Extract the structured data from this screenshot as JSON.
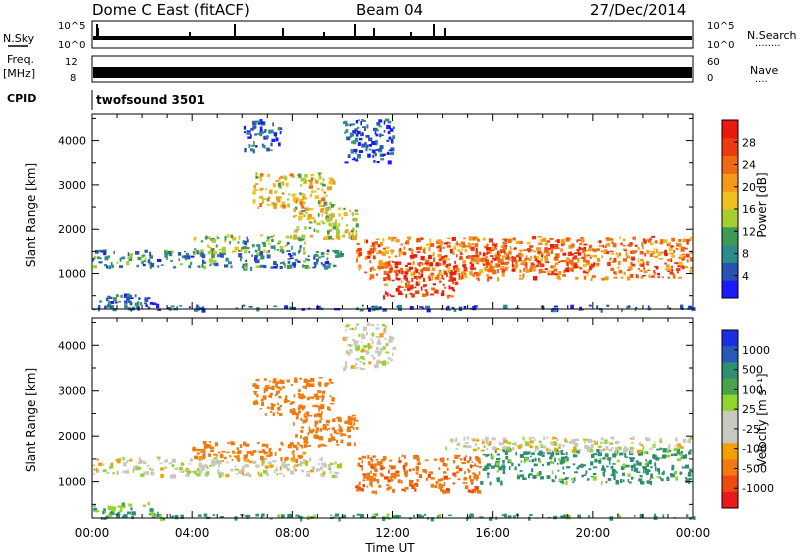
{
  "header": {
    "station": "Dome C East (fitACF)",
    "beam": "Beam 04",
    "date": "27/Dec/2014"
  },
  "strip": {
    "nsky_label": "N.Sky",
    "nsearch_label": "N.Search",
    "nsearch_dots": "........",
    "freq_label": "Freq.",
    "freq_unit": "[MHz]",
    "nave_label": "Nave",
    "nave_dots": "....",
    "cpid_label": "CPID",
    "cpid_value": "twofsound 3501",
    "noise_ticks_left": [
      "10^5",
      "10^0"
    ],
    "noise_ticks_right": [
      "10^5",
      "10^0"
    ],
    "freq_ticks_left": [
      "12",
      "8"
    ],
    "freq_ticks_right": [
      "60",
      "0"
    ]
  },
  "colors": {
    "power": [
      "#1a1aff",
      "#2a52b0",
      "#2f8a8a",
      "#3f9a55",
      "#a5cf30",
      "#f0c020",
      "#f59a18",
      "#f06a12",
      "#ee3a10",
      "#ea1a0e"
    ],
    "velocity": [
      "#1a2fe0",
      "#2a5ab8",
      "#2f8e70",
      "#4aa24a",
      "#8ed62a",
      "#c8c8c0",
      "#c8c8c0",
      "#f0a000",
      "#ef7a10",
      "#ee4a10",
      "#ea1a1a"
    ]
  },
  "chart_data": [
    {
      "type": "heatmap",
      "title": "",
      "xlabel": "",
      "ylabel": "Slant Range [km]",
      "x_ticks": [
        "00:00",
        "04:00",
        "08:00",
        "12:00",
        "16:00",
        "20:00",
        "00:00"
      ],
      "y_ticks": [
        1000,
        2000,
        3000,
        4000
      ],
      "ylim": [
        200,
        4600
      ],
      "xlim_hours": [
        0,
        24
      ],
      "colorbar": {
        "label": "Power [dB]",
        "ticks": [
          4,
          8,
          12,
          16,
          20,
          24,
          28
        ],
        "range": [
          0,
          32
        ]
      },
      "regions": [
        {
          "t0": 0.0,
          "t1": 2.6,
          "r0": 250,
          "r1": 560,
          "v": 6
        },
        {
          "t0": 0.0,
          "t1": 10.0,
          "r0": 1150,
          "r1": 1550,
          "v": 8
        },
        {
          "t0": 4.0,
          "t1": 8.5,
          "r0": 1500,
          "r1": 1900,
          "v": 12
        },
        {
          "t0": 6.4,
          "t1": 9.6,
          "r0": 2500,
          "r1": 3300,
          "v": 18
        },
        {
          "t0": 8.0,
          "t1": 10.6,
          "r0": 1800,
          "r1": 2500,
          "v": 16
        },
        {
          "t0": 10.5,
          "t1": 23.9,
          "r0": 900,
          "r1": 1850,
          "v": 24
        },
        {
          "t0": 11.6,
          "t1": 14.5,
          "r0": 500,
          "r1": 1300,
          "v": 28
        },
        {
          "t0": 15.0,
          "t1": 20.0,
          "r0": 1100,
          "r1": 1700,
          "v": 26
        },
        {
          "t0": 10.0,
          "t1": 12.0,
          "r0": 3500,
          "r1": 4500,
          "v": 4
        },
        {
          "t0": 6.0,
          "t1": 7.5,
          "r0": 3800,
          "r1": 4500,
          "v": 4
        },
        {
          "t0": 0.0,
          "t1": 24.0,
          "r0": 210,
          "r1": 300,
          "v": 4
        }
      ]
    },
    {
      "type": "heatmap",
      "title": "",
      "xlabel": "Time UT",
      "ylabel": "Slant Range [km]",
      "x_ticks": [
        "00:00",
        "04:00",
        "08:00",
        "12:00",
        "16:00",
        "20:00",
        "00:00"
      ],
      "y_ticks": [
        1000,
        2000,
        3000,
        4000
      ],
      "ylim": [
        200,
        4600
      ],
      "xlim_hours": [
        0,
        24
      ],
      "colorbar": {
        "label": "Velocity [m s⁻¹]",
        "ticks": [
          "1000",
          "500",
          "100",
          "25",
          "-25",
          "-100",
          "-500",
          "-1000"
        ]
      },
      "regions": [
        {
          "t0": 0.0,
          "t1": 2.6,
          "r0": 250,
          "r1": 560,
          "v": 100
        },
        {
          "t0": 0.0,
          "t1": 10.0,
          "r0": 1150,
          "r1": 1550,
          "v": 0
        },
        {
          "t0": 4.0,
          "t1": 8.5,
          "r0": 1500,
          "r1": 1900,
          "v": -150
        },
        {
          "t0": 6.4,
          "t1": 9.6,
          "r0": 2500,
          "r1": 3300,
          "v": -300
        },
        {
          "t0": 8.0,
          "t1": 10.6,
          "r0": 1800,
          "r1": 2500,
          "v": -200
        },
        {
          "t0": 10.5,
          "t1": 15.5,
          "r0": 800,
          "r1": 1600,
          "v": -400
        },
        {
          "t0": 15.5,
          "t1": 23.9,
          "r0": 1000,
          "r1": 1750,
          "v": 150
        },
        {
          "t0": 14.0,
          "t1": 23.9,
          "r0": 1700,
          "r1": 2000,
          "v": 0
        },
        {
          "t0": 10.0,
          "t1": 12.0,
          "r0": 3500,
          "r1": 4500,
          "v": 0
        },
        {
          "t0": 0.0,
          "t1": 24.0,
          "r0": 210,
          "r1": 300,
          "v": 150
        }
      ]
    }
  ]
}
